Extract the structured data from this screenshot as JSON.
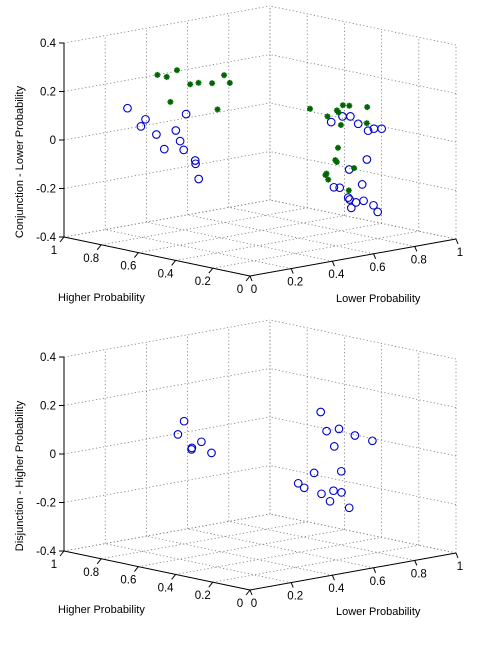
{
  "colors": {
    "series_a": "#0000cc",
    "series_b": "#006600",
    "axes": "#000000",
    "grid": "#7a7a7a",
    "background": "#ffffff"
  },
  "chart_data": [
    {
      "type": "scatter3d",
      "title": "",
      "xlabel": "Lower Probability",
      "ylabel": "Higher Probability",
      "zlabel": "Conjunction - Lower Probability",
      "xlim": [
        0,
        1
      ],
      "ylim": [
        0,
        1
      ],
      "zlim": [
        -0.4,
        0.4
      ],
      "x_ticks": [
        "0",
        "0.2",
        "0.4",
        "0.6",
        "0.8",
        "1"
      ],
      "y_ticks": [
        "0",
        "0.2",
        "0.4",
        "0.6",
        "0.8",
        "1"
      ],
      "z_ticks": [
        "-0.4",
        "-0.2",
        "0",
        "0.2",
        "0.4"
      ],
      "grid": true,
      "series": [
        {
          "marker": "circle",
          "color": "#0000cc",
          "points": [
            [
              0.2,
              0.88,
              0.12
            ],
            [
              0.22,
              0.83,
              0.05
            ],
            [
              0.26,
              0.85,
              0.07
            ],
            [
              0.25,
              0.78,
              0.02
            ],
            [
              0.27,
              0.76,
              -0.04
            ],
            [
              0.29,
              0.72,
              0.04
            ],
            [
              0.32,
              0.73,
              -0.01
            ],
            [
              0.31,
              0.7,
              -0.04
            ],
            [
              0.34,
              0.72,
              0.1
            ],
            [
              0.33,
              0.66,
              -0.08
            ],
            [
              0.35,
              0.68,
              -0.1
            ],
            [
              0.32,
              0.63,
              -0.15
            ],
            [
              0.62,
              0.25,
              0.1
            ],
            [
              0.72,
              0.3,
              0.1
            ],
            [
              0.74,
              0.28,
              0.1
            ],
            [
              0.76,
              0.26,
              0.07
            ],
            [
              0.8,
              0.22,
              0.05
            ],
            [
              0.79,
              0.24,
              0.04
            ],
            [
              0.82,
              0.2,
              0.05
            ],
            [
              0.68,
              0.22,
              -0.1
            ],
            [
              0.57,
              0.18,
              -0.15
            ],
            [
              0.58,
              0.16,
              -0.15
            ],
            [
              0.61,
              0.14,
              -0.2
            ],
            [
              0.63,
              0.17,
              -0.2
            ],
            [
              0.65,
              0.15,
              -0.22
            ],
            [
              0.6,
              0.12,
              -0.23
            ],
            [
              0.66,
              0.12,
              -0.21
            ],
            [
              0.69,
              0.1,
              -0.23
            ],
            [
              0.71,
              0.1,
              -0.26
            ],
            [
              0.68,
              0.15,
              -0.15
            ],
            [
              0.73,
              0.18,
              -0.06
            ]
          ]
        },
        {
          "marker": "star",
          "color": "#006600",
          "points": [
            [
              0.3,
              0.78,
              0.25
            ],
            [
              0.3,
              0.83,
              0.25
            ],
            [
              0.35,
              0.78,
              0.27
            ],
            [
              0.36,
              0.72,
              0.22
            ],
            [
              0.4,
              0.72,
              0.22
            ],
            [
              0.43,
              0.68,
              0.22
            ],
            [
              0.47,
              0.66,
              0.25
            ],
            [
              0.48,
              0.64,
              0.22
            ],
            [
              0.42,
              0.64,
              0.12
            ],
            [
              0.3,
              0.76,
              0.15
            ],
            [
              0.58,
              0.32,
              0.15
            ],
            [
              0.62,
              0.27,
              0.12
            ],
            [
              0.7,
              0.3,
              0.12
            ],
            [
              0.72,
              0.33,
              0.12
            ],
            [
              0.74,
              0.32,
              0.14
            ],
            [
              0.78,
              0.33,
              0.13
            ],
            [
              0.82,
              0.28,
              0.06
            ],
            [
              0.84,
              0.3,
              0.12
            ],
            [
              0.73,
              0.32,
              0.06
            ],
            [
              0.68,
              0.28,
              -0.02
            ],
            [
              0.64,
              0.25,
              -0.06
            ],
            [
              0.61,
              0.27,
              -0.12
            ],
            [
              0.57,
              0.22,
              -0.1
            ],
            [
              0.56,
              0.2,
              -0.12
            ],
            [
              0.66,
              0.2,
              -0.18
            ],
            [
              0.62,
              0.22,
              -0.06
            ],
            [
              0.65,
              0.16,
              -0.08
            ]
          ]
        }
      ]
    },
    {
      "type": "scatter3d",
      "title": "",
      "xlabel": "Lower Probability",
      "ylabel": "Higher Probability",
      "zlabel": "Disjunction - Higher Probability",
      "xlim": [
        0,
        1
      ],
      "ylim": [
        0,
        1
      ],
      "zlim": [
        -0.4,
        0.4
      ],
      "x_ticks": [
        "0",
        "0.2",
        "0.4",
        "0.6",
        "0.8",
        "1"
      ],
      "y_ticks": [
        "0",
        "0.2",
        "0.4",
        "0.6",
        "0.8",
        "1"
      ],
      "z_ticks": [
        "-0.4",
        "-0.2",
        "0",
        "0.2",
        "0.4"
      ],
      "grid": true,
      "series": [
        {
          "marker": "circle",
          "color": "#0000cc",
          "points": [
            [
              0.3,
              0.72,
              0.08
            ],
            [
              0.33,
              0.72,
              0.13
            ],
            [
              0.33,
              0.68,
              0.02
            ],
            [
              0.35,
              0.7,
              0.02
            ],
            [
              0.36,
              0.66,
              0.05
            ],
            [
              0.4,
              0.65,
              0.0
            ],
            [
              0.65,
              0.34,
              0.18
            ],
            [
              0.67,
              0.33,
              0.1
            ],
            [
              0.68,
              0.3,
              0.04
            ],
            [
              0.73,
              0.33,
              0.1
            ],
            [
              0.78,
              0.3,
              0.07
            ],
            [
              0.82,
              0.25,
              0.05
            ],
            [
              0.55,
              0.35,
              -0.1
            ],
            [
              0.57,
              0.34,
              -0.12
            ],
            [
              0.6,
              0.32,
              -0.06
            ],
            [
              0.6,
              0.28,
              -0.14
            ],
            [
              0.64,
              0.26,
              -0.13
            ],
            [
              0.67,
              0.25,
              -0.14
            ],
            [
              0.68,
              0.22,
              -0.2
            ],
            [
              0.65,
              0.29,
              -0.18
            ],
            [
              0.66,
              0.24,
              -0.05
            ]
          ]
        }
      ]
    }
  ]
}
